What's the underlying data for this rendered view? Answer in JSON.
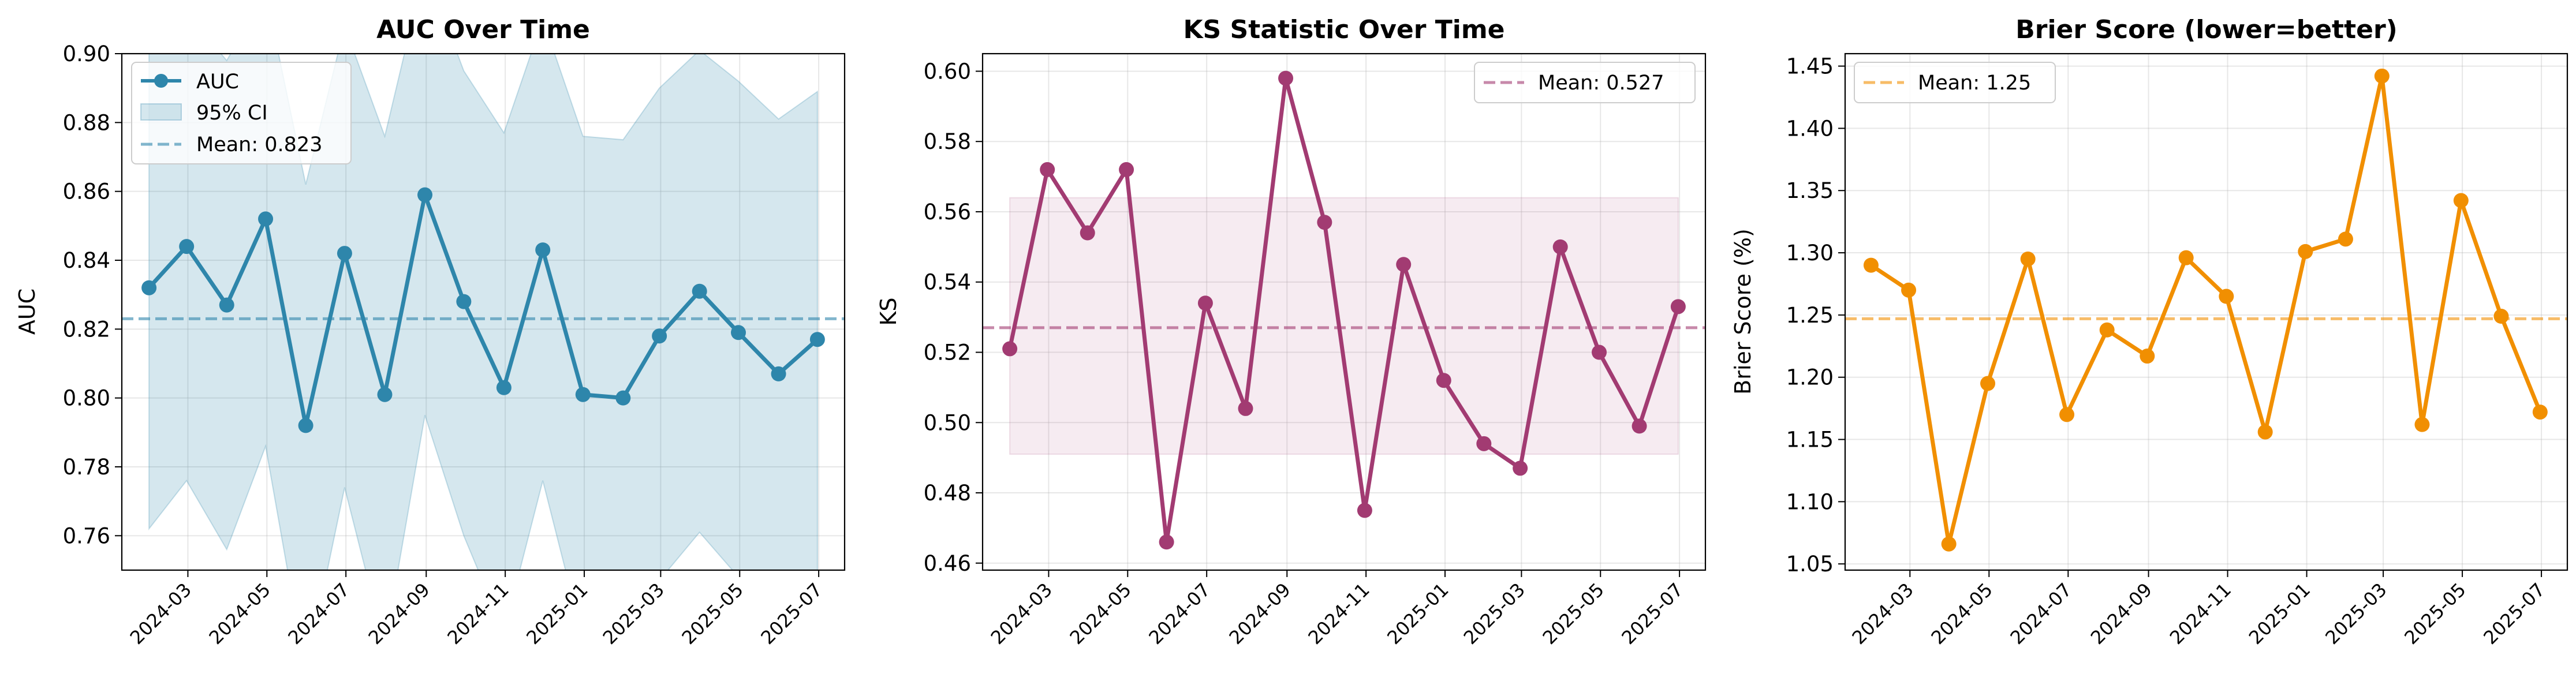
{
  "chart_data": [
    {
      "type": "line",
      "title": "AUC Over Time",
      "xlabel": "",
      "ylabel": "AUC",
      "color": "#2e86ab",
      "ylim": [
        0.75,
        0.9
      ],
      "yticks": [
        "0.76",
        "0.78",
        "0.80",
        "0.82",
        "0.84",
        "0.86",
        "0.88",
        "0.90"
      ],
      "xticks": [
        "2024-03",
        "2024-05",
        "2024-07",
        "2024-09",
        "2024-11",
        "2025-01",
        "2025-03",
        "2025-05",
        "2025-07"
      ],
      "x": [
        "2024-01-31",
        "2024-02-29",
        "2024-03-31",
        "2024-04-30",
        "2024-05-31",
        "2024-06-30",
        "2024-07-31",
        "2024-08-31",
        "2024-09-30",
        "2024-10-31",
        "2024-11-30",
        "2024-12-31",
        "2025-01-31",
        "2025-02-28",
        "2025-03-31",
        "2025-04-30",
        "2025-05-31",
        "2025-06-30"
      ],
      "series": [
        {
          "name": "AUC",
          "values": [
            0.832,
            0.844,
            0.827,
            0.852,
            0.792,
            0.842,
            0.801,
            0.859,
            0.828,
            0.803,
            0.843,
            0.801,
            0.8,
            0.818,
            0.831,
            0.819,
            0.807,
            0.817
          ]
        }
      ],
      "ci_band": {
        "name": "95% CI",
        "lower": [
          0.762,
          0.776,
          0.756,
          0.786,
          0.72,
          0.774,
          0.728,
          0.795,
          0.76,
          0.732,
          0.776,
          0.73,
          0.729,
          0.747,
          0.761,
          0.748,
          0.736,
          0.746
        ],
        "upper": [
          0.905,
          0.912,
          0.898,
          0.918,
          0.862,
          0.908,
          0.876,
          0.925,
          0.895,
          0.877,
          0.91,
          0.876,
          0.875,
          0.89,
          0.901,
          0.892,
          0.881,
          0.889
        ]
      },
      "mean_line": {
        "name": "Mean: 0.823",
        "value": 0.823
      },
      "grid": true,
      "legend_position": "top-left"
    },
    {
      "type": "line",
      "title": "KS Statistic Over Time",
      "xlabel": "",
      "ylabel": "KS",
      "color": "#a23b72",
      "ylim": [
        0.458,
        0.605
      ],
      "yticks": [
        "0.46",
        "0.48",
        "0.50",
        "0.52",
        "0.54",
        "0.56",
        "0.58",
        "0.60"
      ],
      "xticks": [
        "2024-03",
        "2024-05",
        "2024-07",
        "2024-09",
        "2024-11",
        "2025-01",
        "2025-03",
        "2025-05",
        "2025-07"
      ],
      "x": [
        "2024-01-31",
        "2024-02-29",
        "2024-03-31",
        "2024-04-30",
        "2024-05-31",
        "2024-06-30",
        "2024-07-31",
        "2024-08-31",
        "2024-09-30",
        "2024-10-31",
        "2024-11-30",
        "2024-12-31",
        "2025-01-31",
        "2025-02-28",
        "2025-03-31",
        "2025-04-30",
        "2025-05-31",
        "2025-06-30"
      ],
      "series": [
        {
          "name": "KS",
          "values": [
            0.521,
            0.572,
            0.554,
            0.572,
            0.466,
            0.534,
            0.504,
            0.598,
            0.557,
            0.475,
            0.545,
            0.512,
            0.494,
            0.487,
            0.55,
            0.52,
            0.499,
            0.533
          ]
        }
      ],
      "std_band": {
        "lower": 0.491,
        "upper": 0.564
      },
      "mean_line": {
        "name": "Mean: 0.527",
        "value": 0.527
      },
      "grid": true,
      "legend_position": "top-right"
    },
    {
      "type": "line",
      "title": "Brier Score (lower=better)",
      "xlabel": "",
      "ylabel": "Brier Score (%)",
      "color": "#f18f01",
      "ylim": [
        1.045,
        1.46
      ],
      "yticks": [
        "1.05",
        "1.10",
        "1.15",
        "1.20",
        "1.25",
        "1.30",
        "1.35",
        "1.40",
        "1.45"
      ],
      "xticks": [
        "2024-03",
        "2024-05",
        "2024-07",
        "2024-09",
        "2024-11",
        "2025-01",
        "2025-03",
        "2025-05",
        "2025-07"
      ],
      "x": [
        "2024-01-31",
        "2024-02-29",
        "2024-03-31",
        "2024-04-30",
        "2024-05-31",
        "2024-06-30",
        "2024-07-31",
        "2024-08-31",
        "2024-09-30",
        "2024-10-31",
        "2024-11-30",
        "2024-12-31",
        "2025-01-31",
        "2025-02-28",
        "2025-03-31",
        "2025-04-30",
        "2025-05-31",
        "2025-06-30"
      ],
      "series": [
        {
          "name": "Brier Score",
          "values": [
            1.29,
            1.27,
            1.066,
            1.195,
            1.295,
            1.17,
            1.238,
            1.217,
            1.296,
            1.265,
            1.156,
            1.301,
            1.311,
            1.442,
            1.162,
            1.342,
            1.249,
            1.172
          ]
        }
      ],
      "mean_line": {
        "name": "Mean: 1.25",
        "value": 1.247
      },
      "grid": true,
      "legend_position": "top-left"
    }
  ]
}
